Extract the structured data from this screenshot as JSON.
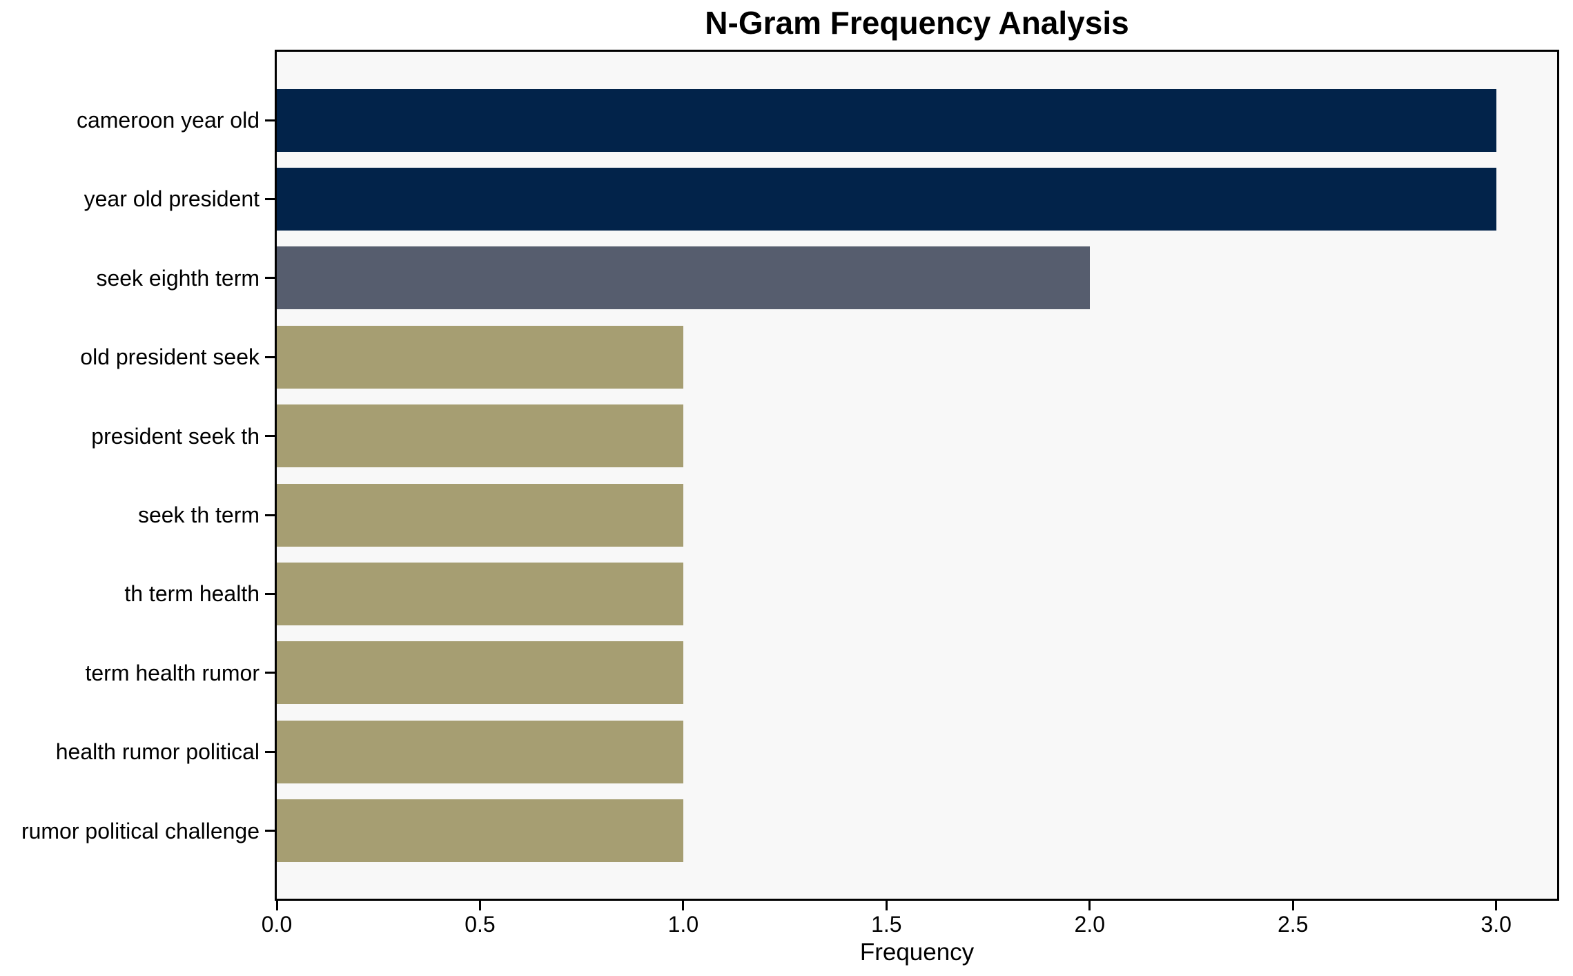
{
  "chart_data": {
    "type": "bar",
    "orientation": "horizontal",
    "title": "N-Gram Frequency Analysis",
    "xlabel": "Frequency",
    "ylabel": "",
    "categories": [
      "cameroon year old",
      "year old president",
      "seek eighth term",
      "old president seek",
      "president seek th",
      "seek th term",
      "th term health",
      "term health rumor",
      "health rumor political",
      "rumor political challenge"
    ],
    "values": [
      3,
      3,
      2,
      1,
      1,
      1,
      1,
      1,
      1,
      1
    ],
    "bar_colors": [
      "#02234a",
      "#02234a",
      "#565d6e",
      "#a69e72",
      "#a69e72",
      "#a69e72",
      "#a69e72",
      "#a69e72",
      "#a69e72",
      "#a69e72"
    ],
    "xlim": [
      0.0,
      3.15
    ],
    "xticks": [
      0.0,
      0.5,
      1.0,
      1.5,
      2.0,
      2.5,
      3.0
    ],
    "xtick_labels": [
      "0.0",
      "0.5",
      "1.0",
      "1.5",
      "2.0",
      "2.5",
      "3.0"
    ],
    "grid": false,
    "legend": null,
    "plot_background": "#f8f8f8",
    "figure_background": "#ffffff",
    "spine_color": "#000000"
  }
}
